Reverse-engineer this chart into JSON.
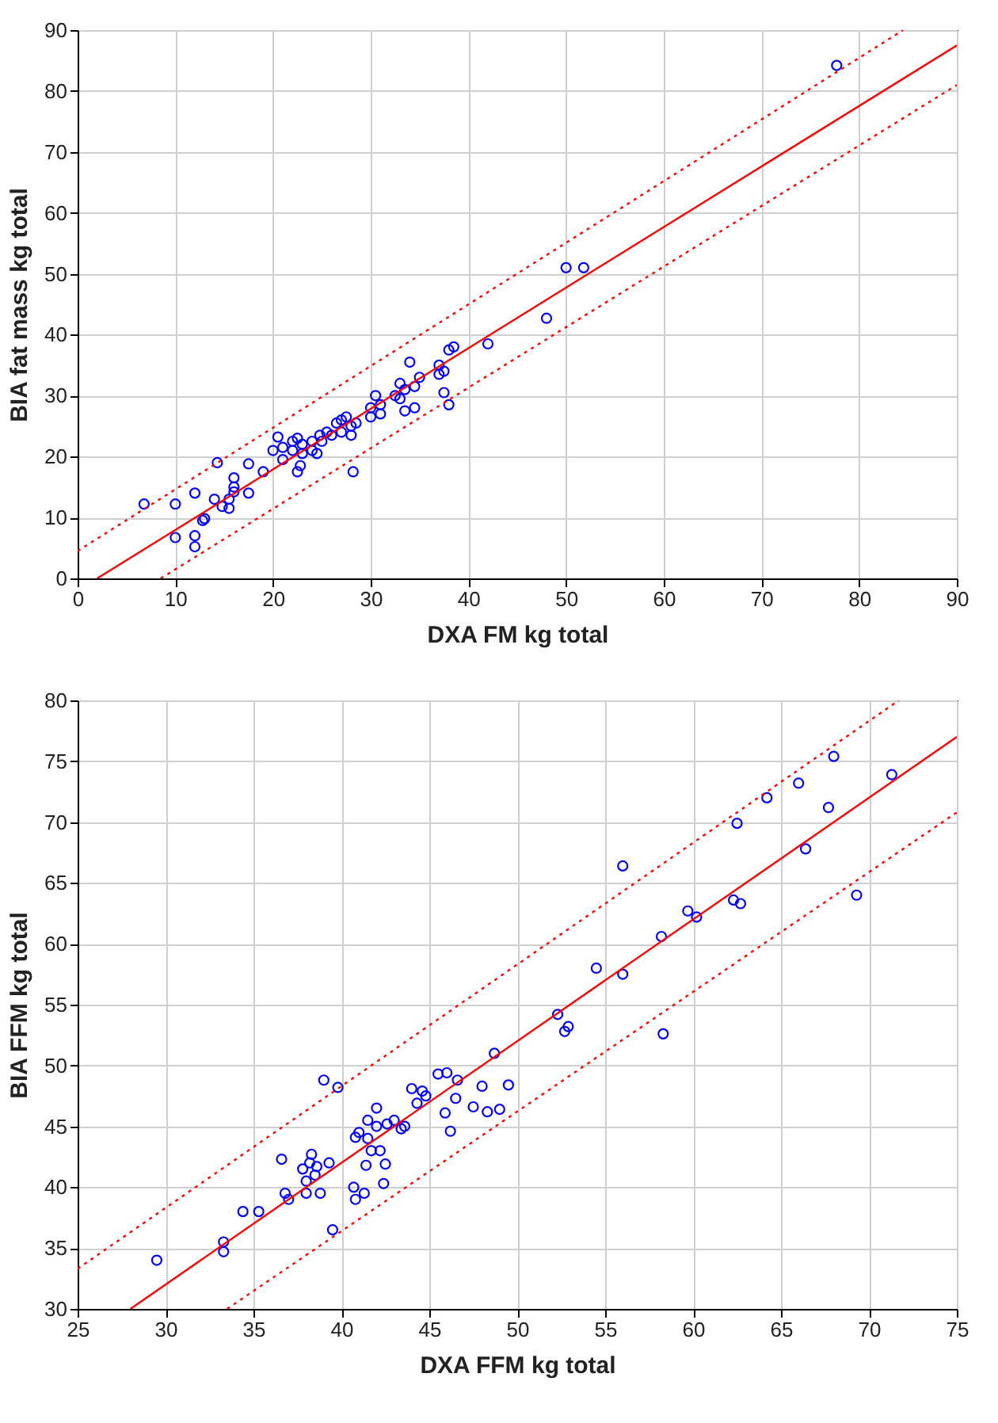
{
  "chart_data": [
    {
      "type": "scatter",
      "xlabel": "DXA FM kg total",
      "ylabel": "BIA fat mass kg total",
      "xlim": [
        0,
        90
      ],
      "ylim": [
        0,
        90
      ],
      "xticks": [
        0,
        10,
        20,
        30,
        40,
        50,
        60,
        70,
        80,
        90
      ],
      "yticks": [
        0,
        10,
        20,
        30,
        40,
        50,
        60,
        70,
        80,
        90
      ],
      "grid": true,
      "series": [
        {
          "type": "scatter",
          "marker": "circle",
          "color": "#0000ff",
          "x": [
            6.8,
            10,
            10,
            12,
            12,
            12,
            12.8,
            13,
            14,
            14.3,
            14.8,
            15.5,
            15.5,
            16,
            16,
            16,
            17.5,
            17.5,
            19,
            20,
            20.5,
            21,
            21,
            22,
            22,
            22.5,
            22.5,
            22.8,
            23,
            23,
            24,
            24,
            24.5,
            24.8,
            25,
            25.5,
            26,
            26.5,
            27,
            27,
            27.5,
            28,
            28,
            28.2,
            28.5,
            30,
            30,
            30.5,
            31,
            31,
            32.5,
            33,
            33,
            33.5,
            33.5,
            34,
            34.5,
            34.5,
            35,
            37,
            37,
            37.5,
            37.5,
            38,
            38,
            38.5,
            42,
            48,
            50,
            51.8,
            77.7
          ],
          "values": [
            12.2,
            12.2,
            6.7,
            14,
            7,
            5.2,
            9.5,
            9.8,
            13,
            19,
            11.8,
            11.5,
            13,
            14.2,
            16.5,
            15,
            14,
            18.8,
            17.5,
            21,
            23.2,
            21.5,
            19.5,
            22.5,
            21,
            23,
            17.5,
            18.5,
            20.5,
            22,
            21,
            22.5,
            20.5,
            23.5,
            22.5,
            24,
            23.5,
            25.5,
            26,
            24,
            26.5,
            23.5,
            25,
            17.5,
            25.5,
            26.5,
            28,
            30,
            27,
            28.5,
            30,
            32,
            29.5,
            31,
            27.5,
            35.5,
            31.5,
            28,
            33,
            33.5,
            35,
            30.5,
            34,
            28.5,
            37.5,
            38,
            38.5,
            42.7,
            51,
            51,
            84.2
          ]
        },
        {
          "type": "line",
          "color": "#ff0000",
          "line_style": "solid",
          "x": [
            2,
            90
          ],
          "values": [
            0,
            87.5
          ]
        },
        {
          "type": "line",
          "color": "#ff0000",
          "line_style": "dotted",
          "x": [
            0,
            84.5
          ],
          "values": [
            4.5,
            90
          ]
        },
        {
          "type": "line",
          "color": "#ff0000",
          "line_style": "dotted",
          "x": [
            8.5,
            90
          ],
          "values": [
            0,
            81
          ]
        }
      ]
    },
    {
      "type": "scatter",
      "xlabel": "DXA FFM kg total",
      "ylabel": "BIA FFM kg total",
      "xlim": [
        25,
        75
      ],
      "ylim": [
        30,
        80
      ],
      "xticks": [
        25,
        30,
        35,
        40,
        45,
        50,
        55,
        60,
        65,
        70,
        75
      ],
      "yticks": [
        30,
        35,
        40,
        45,
        50,
        55,
        60,
        65,
        70,
        75,
        80
      ],
      "grid": true,
      "series": [
        {
          "type": "scatter",
          "marker": "circle",
          "color": "#0000ff",
          "x": [
            29.5,
            33.3,
            33.3,
            34.4,
            35.3,
            36.6,
            36.8,
            37,
            37.8,
            38,
            38,
            38.2,
            38.3,
            38.5,
            38.8,
            38.6,
            39,
            39.3,
            39.5,
            39.8,
            40.7,
            40.8,
            40.8,
            41,
            41.3,
            41.4,
            41.5,
            41.5,
            41.7,
            42,
            42,
            42.2,
            42.4,
            42.5,
            42.6,
            43,
            43.4,
            43.6,
            44,
            44.3,
            44.6,
            44.8,
            45.5,
            45.9,
            46,
            46.2,
            46.5,
            46.6,
            47.5,
            48,
            48.3,
            48.7,
            49,
            49.5,
            52.3,
            52.7,
            52.9,
            54.5,
            56,
            56,
            58.2,
            58.3,
            59.7,
            60.2,
            62.3,
            62.5,
            62.7,
            64.2,
            66,
            66.4,
            67.7,
            68,
            69.3,
            71.3
          ],
          "values": [
            34,
            35.5,
            34.7,
            38,
            38,
            42.3,
            39.5,
            39,
            41.5,
            40.5,
            39.5,
            42,
            42.7,
            41,
            39.5,
            41.7,
            48.8,
            42,
            36.5,
            48.2,
            40,
            39,
            44.1,
            44.5,
            39.5,
            41.8,
            45.5,
            44,
            43,
            46.5,
            45,
            43,
            40.3,
            41.9,
            45.2,
            45.5,
            44.8,
            45,
            48.1,
            46.9,
            47.9,
            47.5,
            49.3,
            46.1,
            49.4,
            44.6,
            47.3,
            48.8,
            46.6,
            48.3,
            46.2,
            51,
            46.4,
            48.4,
            54.2,
            52.8,
            53.2,
            58,
            66.4,
            57.5,
            60.6,
            52.6,
            62.7,
            62.2,
            63.6,
            69.9,
            63.3,
            72,
            73.2,
            67.8,
            71.2,
            75.4,
            64,
            73.9
          ]
        },
        {
          "type": "line",
          "color": "#ff0000",
          "line_style": "solid",
          "x": [
            28,
            75
          ],
          "values": [
            30,
            77
          ]
        },
        {
          "type": "line",
          "color": "#ff0000",
          "line_style": "dotted",
          "x": [
            25,
            71.7
          ],
          "values": [
            33.3,
            80
          ]
        },
        {
          "type": "line",
          "color": "#ff0000",
          "line_style": "dotted",
          "x": [
            33.5,
            75
          ],
          "values": [
            30,
            70.8
          ]
        }
      ]
    }
  ]
}
